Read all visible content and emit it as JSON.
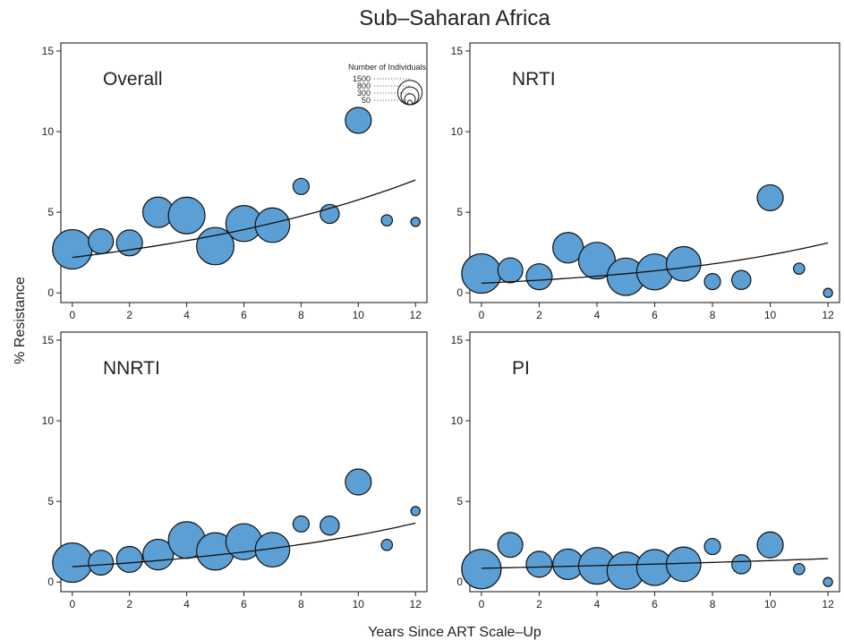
{
  "chart_data": {
    "type": "scatter",
    "title": "Sub–Saharan Africa",
    "xlabel": "Years Since ART Scale–Up",
    "ylabel": "% Resistance",
    "xlim": [
      -0.4,
      12.4
    ],
    "ylim": [
      -0.6,
      15.5
    ],
    "xticks": [
      "0",
      "2",
      "4",
      "6",
      "8",
      "10",
      "12"
    ],
    "yticks": [
      "0",
      "5",
      "10",
      "15"
    ],
    "grid": false,
    "marker_color": "#5b9fd4",
    "legend": {
      "title": "Number of Individuals",
      "entries": [
        {
          "label": "1500",
          "value": 1500
        },
        {
          "label": "800",
          "value": 800
        },
        {
          "label": "300",
          "value": 300
        },
        {
          "label": "50",
          "value": 50
        }
      ]
    },
    "panels": [
      {
        "label": "Overall",
        "points": [
          {
            "x": 0,
            "y": 2.7,
            "n": 1500
          },
          {
            "x": 1,
            "y": 3.2,
            "n": 600
          },
          {
            "x": 2,
            "y": 3.1,
            "n": 650
          },
          {
            "x": 3,
            "y": 5.0,
            "n": 900
          },
          {
            "x": 4,
            "y": 4.8,
            "n": 1300
          },
          {
            "x": 5,
            "y": 2.9,
            "n": 1350
          },
          {
            "x": 6,
            "y": 4.3,
            "n": 1250
          },
          {
            "x": 7,
            "y": 4.2,
            "n": 1150
          },
          {
            "x": 8,
            "y": 6.6,
            "n": 250
          },
          {
            "x": 9,
            "y": 4.9,
            "n": 350
          },
          {
            "x": 10,
            "y": 10.7,
            "n": 650
          },
          {
            "x": 11,
            "y": 4.5,
            "n": 120
          },
          {
            "x": 12,
            "y": 4.4,
            "n": 80
          }
        ],
        "trend": {
          "y0": 2.2,
          "y12": 7.0
        }
      },
      {
        "label": "NRTI",
        "points": [
          {
            "x": 0,
            "y": 1.2,
            "n": 1500
          },
          {
            "x": 1,
            "y": 1.4,
            "n": 600
          },
          {
            "x": 2,
            "y": 1.0,
            "n": 650
          },
          {
            "x": 3,
            "y": 2.8,
            "n": 900
          },
          {
            "x": 4,
            "y": 2.0,
            "n": 1300
          },
          {
            "x": 5,
            "y": 1.0,
            "n": 1350
          },
          {
            "x": 6,
            "y": 1.3,
            "n": 1250
          },
          {
            "x": 7,
            "y": 1.8,
            "n": 1150
          },
          {
            "x": 8,
            "y": 0.7,
            "n": 250
          },
          {
            "x": 9,
            "y": 0.8,
            "n": 350
          },
          {
            "x": 10,
            "y": 5.9,
            "n": 650
          },
          {
            "x": 11,
            "y": 1.5,
            "n": 120
          },
          {
            "x": 12,
            "y": 0.0,
            "n": 80
          }
        ],
        "trend": {
          "y0": 0.6,
          "y12": 3.1
        }
      },
      {
        "label": "NNRTI",
        "points": [
          {
            "x": 0,
            "y": 1.2,
            "n": 1500
          },
          {
            "x": 1,
            "y": 1.2,
            "n": 600
          },
          {
            "x": 2,
            "y": 1.4,
            "n": 650
          },
          {
            "x": 3,
            "y": 1.7,
            "n": 900
          },
          {
            "x": 4,
            "y": 2.6,
            "n": 1300
          },
          {
            "x": 5,
            "y": 1.9,
            "n": 1350
          },
          {
            "x": 6,
            "y": 2.5,
            "n": 1250
          },
          {
            "x": 7,
            "y": 2.0,
            "n": 1150
          },
          {
            "x": 8,
            "y": 3.6,
            "n": 250
          },
          {
            "x": 9,
            "y": 3.5,
            "n": 350
          },
          {
            "x": 10,
            "y": 6.2,
            "n": 650
          },
          {
            "x": 11,
            "y": 2.3,
            "n": 120
          },
          {
            "x": 12,
            "y": 4.4,
            "n": 80
          }
        ],
        "trend": {
          "y0": 0.95,
          "y12": 3.65
        }
      },
      {
        "label": "PI",
        "points": [
          {
            "x": 0,
            "y": 0.8,
            "n": 1500
          },
          {
            "x": 1,
            "y": 2.3,
            "n": 600
          },
          {
            "x": 2,
            "y": 1.1,
            "n": 650
          },
          {
            "x": 3,
            "y": 1.1,
            "n": 900
          },
          {
            "x": 4,
            "y": 1.0,
            "n": 1300
          },
          {
            "x": 5,
            "y": 0.7,
            "n": 1350
          },
          {
            "x": 6,
            "y": 0.9,
            "n": 1250
          },
          {
            "x": 7,
            "y": 1.1,
            "n": 1150
          },
          {
            "x": 8,
            "y": 2.2,
            "n": 250
          },
          {
            "x": 9,
            "y": 1.1,
            "n": 350
          },
          {
            "x": 10,
            "y": 2.3,
            "n": 650
          },
          {
            "x": 11,
            "y": 0.8,
            "n": 120
          },
          {
            "x": 12,
            "y": 0.0,
            "n": 80
          }
        ],
        "trend": {
          "y0": 0.85,
          "y12": 1.45
        }
      }
    ]
  }
}
